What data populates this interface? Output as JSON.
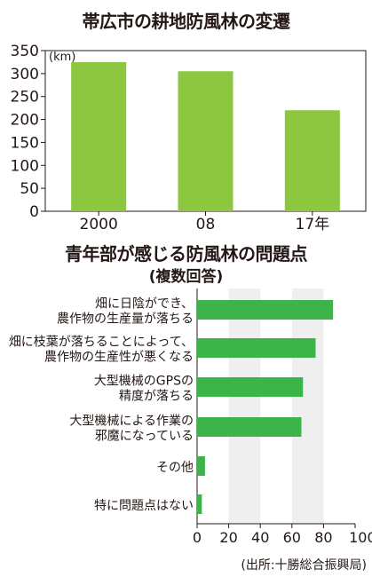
{
  "chart_data": [
    {
      "type": "bar",
      "title": "帯広市の耕地防風林の変遷",
      "unit": "(km)",
      "categories": [
        "2000",
        "08",
        "17年"
      ],
      "values": [
        325,
        305,
        220
      ],
      "ylim": [
        0,
        350
      ],
      "yticks": [
        "0",
        "50",
        "100",
        "150",
        "200",
        "250",
        "300",
        "350"
      ],
      "grid": false,
      "color": "#8dc63f"
    },
    {
      "type": "bar",
      "orientation": "horizontal",
      "title": "青年部が感じる防風林の問題点",
      "subtitle": "(複数回答)",
      "categories": [
        "畑に日陰ができ、\n農作物の生産量が落ちる",
        "畑に枝葉が落ちることによって、\n農作物の生産性が悪くなる",
        "大型機械のGPSの\n精度が落ちる",
        "大型機械による作業の\n邪魔になっている",
        "その他",
        "特に問題点はない"
      ],
      "values": [
        86,
        75,
        67,
        66,
        5,
        3
      ],
      "xlim": [
        0,
        100
      ],
      "xticks": [
        "0",
        "20",
        "40",
        "60",
        "80",
        "100%"
      ],
      "grid": true,
      "color": "#3cb44a"
    }
  ],
  "source": "(出所:十勝総合振興局)"
}
